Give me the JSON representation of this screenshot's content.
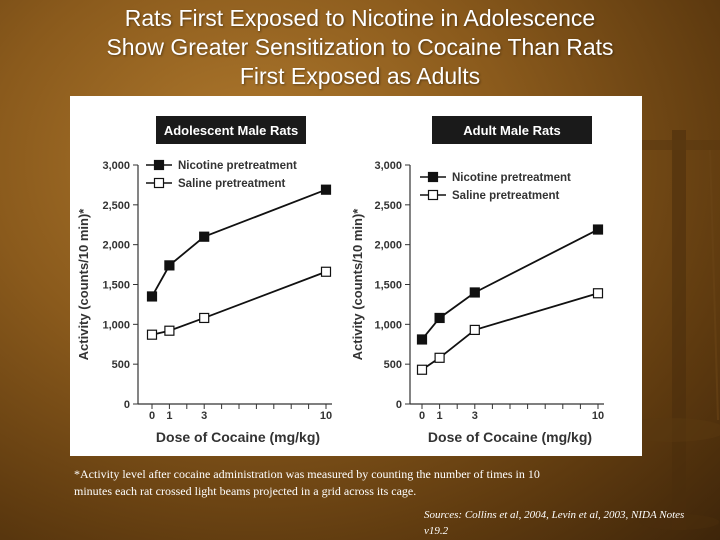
{
  "slide": {
    "title_lines": [
      "Rats First Exposed to Nicotine in Adolescence",
      "Show Greater Sensitization to Cocaine Than Rats",
      "First Exposed as Adults"
    ],
    "footnote_lines": [
      "*Activity level after cocaine administration was measured by counting the number of times in 10",
      "minutes each rat crossed light beams projected in a grid across its cage."
    ],
    "sources_lines": [
      "Sources: Collins et al, 2004, Levin et al, 2003, NIDA Notes",
      "v19.2"
    ]
  },
  "colors": {
    "panel_header_bg": "#1a1a1a",
    "nicotine_marker": "#111111",
    "saline_marker": "#ffffff",
    "line": "#111111"
  },
  "chart_data": [
    {
      "type": "line",
      "title": "Adolescent Male Rats",
      "xlabel": "Dose of Cocaine (mg/kg)",
      "ylabel": "Activity (counts/10 min)*",
      "x": [
        0,
        1,
        3,
        10
      ],
      "xticks": [
        "0",
        "1",
        "3",
        "10"
      ],
      "ylim": [
        0,
        3000
      ],
      "yticks": [
        "0",
        "500",
        "1,000",
        "1,500",
        "2,000",
        "2,500",
        "3,000"
      ],
      "legend_position": "top-left",
      "series": [
        {
          "name": "Nicotine pretreatment",
          "marker": "filled-square",
          "values": [
            1350,
            1740,
            2100,
            2690
          ]
        },
        {
          "name": "Saline pretreatment",
          "marker": "open-square",
          "values": [
            870,
            920,
            1080,
            1660
          ]
        }
      ]
    },
    {
      "type": "line",
      "title": "Adult Male Rats",
      "xlabel": "Dose of Cocaine (mg/kg)",
      "ylabel": "Activity (counts/10 min)*",
      "x": [
        0,
        1,
        3,
        10
      ],
      "xticks": [
        "0",
        "1",
        "3",
        "10"
      ],
      "ylim": [
        0,
        3000
      ],
      "yticks": [
        "0",
        "500",
        "1,000",
        "1,500",
        "2,000",
        "2,500",
        "3,000"
      ],
      "legend_position": "top-left",
      "series": [
        {
          "name": "Nicotine pretreatment",
          "marker": "filled-square",
          "values": [
            810,
            1080,
            1400,
            2190
          ]
        },
        {
          "name": "Saline pretreatment",
          "marker": "open-square",
          "values": [
            430,
            580,
            930,
            1390
          ]
        }
      ]
    }
  ]
}
